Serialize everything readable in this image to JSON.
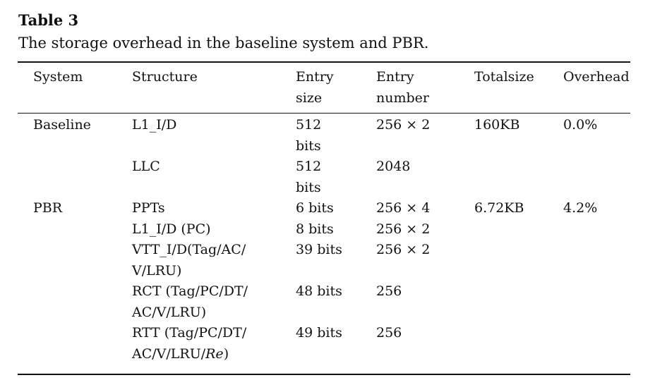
{
  "table_label": "Table 3",
  "caption": "The storage overhead in the baseline system and PBR.",
  "headers": [
    "System",
    "Structure",
    "Entry\nsize",
    "Entry\nnumber",
    "Totalsize",
    "Overhead"
  ],
  "rows": [
    {
      "system": "Baseline",
      "structure": "L1_I/D",
      "entry_size": "512\nbits",
      "entry_number": "256 × 2",
      "totalsize": "160KB",
      "overhead": "0.0%"
    },
    {
      "system": "",
      "structure": "LLC",
      "entry_size": "512\nbits",
      "entry_number": "2048",
      "totalsize": "",
      "overhead": ""
    },
    {
      "system": "PBR",
      "structure": "PPTs",
      "entry_size": "6 bits",
      "entry_number": "256 × 4",
      "totalsize": "6.72KB",
      "overhead": "4.2%"
    },
    {
      "system": "",
      "structure": "L1_I/D (PC)",
      "entry_size": "8 bits",
      "entry_number": "256 × 2",
      "totalsize": "",
      "overhead": ""
    },
    {
      "system": "",
      "structure": "VTT_I/D(Tag/AC/\nV/LRU)",
      "entry_size": "39 bits",
      "entry_number": "256 × 2",
      "totalsize": "",
      "overhead": ""
    },
    {
      "system": "",
      "structure": "RCT (Tag/PC/DT/\nAC/V/LRU)",
      "entry_size": "48 bits",
      "entry_number": "256",
      "totalsize": "",
      "overhead": ""
    },
    {
      "system": "",
      "structure_prefix": "RTT (Tag/PC/DT/\nAC/V/LRU/",
      "structure_italic": "Re",
      "structure_suffix": ")",
      "entry_size": "49 bits",
      "entry_number": "256",
      "totalsize": "",
      "overhead": ""
    }
  ]
}
